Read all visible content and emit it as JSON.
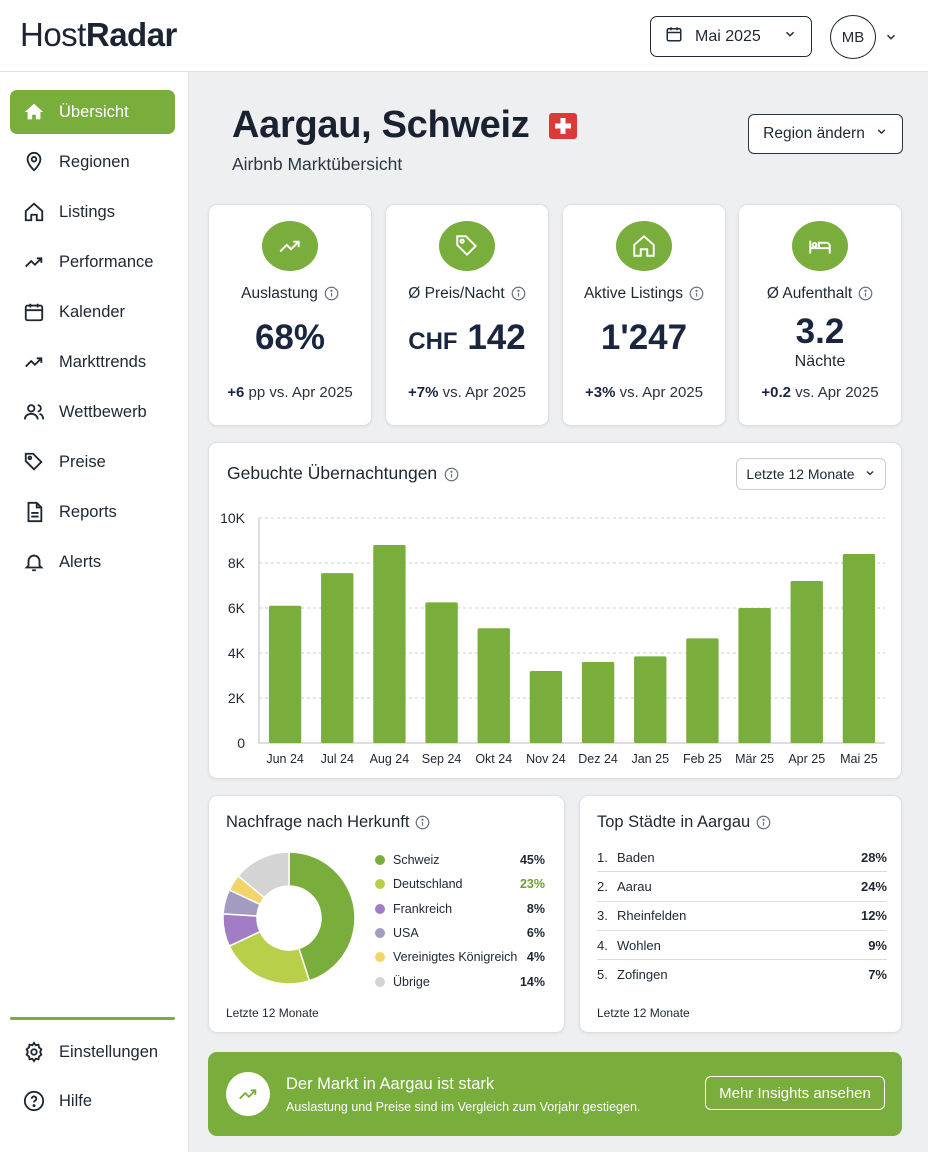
{
  "app": {
    "logo_light": "Host",
    "logo_bold": "Radar"
  },
  "header": {
    "date_label": "Mai 2025",
    "avatar_initials": "MB"
  },
  "sidebar": {
    "items": [
      {
        "label": "Übersicht",
        "icon": "home-icon",
        "active": true
      },
      {
        "label": "Regionen",
        "icon": "map-pin-icon"
      },
      {
        "label": "Listings",
        "icon": "house-icon"
      },
      {
        "label": "Performance",
        "icon": "trend-up-icon"
      },
      {
        "label": "Kalender",
        "icon": "calendar-icon"
      },
      {
        "label": "Markttrends",
        "icon": "trend-up-icon"
      },
      {
        "label": "Wettbewerb",
        "icon": "users-icon"
      },
      {
        "label": "Preise",
        "icon": "tag-icon"
      },
      {
        "label": "Reports",
        "icon": "document-icon"
      },
      {
        "label": "Alerts",
        "icon": "bell-icon"
      }
    ],
    "bottom_items": [
      {
        "label": "Einstellungen",
        "icon": "gear-icon"
      },
      {
        "label": "Hilfe",
        "icon": "help-icon"
      }
    ]
  },
  "page": {
    "title": "Aargau, Schweiz",
    "subtitle": "Airbnb Marktübersicht",
    "region_button": "Region ändern"
  },
  "kpis": [
    {
      "label": "Auslastung",
      "value": "68%",
      "delta_bold": "+6",
      "delta_rest": " pp vs. Apr 2025",
      "icon": "trend-up-icon"
    },
    {
      "label": "Ø Preis/Nacht",
      "currency": "CHF",
      "value": "142",
      "delta_bold": "+7%",
      "delta_rest": " vs. Apr 2025",
      "icon": "tag-icon"
    },
    {
      "label": "Aktive Listings",
      "value": "1'247",
      "delta_bold": "+3%",
      "delta_rest": " vs. Apr 2025",
      "icon": "house-icon"
    },
    {
      "label": "Ø Aufenthalt",
      "value": "3.2",
      "unit": "Nächte",
      "delta_bold": "+0.2",
      "delta_rest": " vs. Apr 2025",
      "icon": "bed-icon"
    }
  ],
  "booking_chart": {
    "title": "Gebuchte Übernachtungen",
    "range_label": "Letzte 12 Monate"
  },
  "chart_data": {
    "type": "bar",
    "title": "Gebuchte Übernachtungen",
    "categories": [
      "Jun 24",
      "Jul 24",
      "Aug 24",
      "Sep 24",
      "Okt 24",
      "Nov 24",
      "Dez 24",
      "Jan 25",
      "Feb 25",
      "Mär 25",
      "Apr 25",
      "Mai 25"
    ],
    "values": [
      6100,
      7550,
      8800,
      6250,
      5100,
      3200,
      3600,
      3850,
      4650,
      6000,
      7200,
      8400
    ],
    "ylim": [
      0,
      10000
    ],
    "yticks": [
      0,
      2000,
      4000,
      6000,
      8000,
      10000
    ],
    "ytick_labels": [
      "0",
      "2K",
      "4K",
      "6K",
      "8K",
      "10K"
    ],
    "grid": true,
    "color": "#79ad3c"
  },
  "demand": {
    "title": "Nachfrage nach Herkunft",
    "footnote": "Letzte 12 Monate",
    "segments": [
      {
        "name": "Schweiz",
        "pct": "45%",
        "value": 45,
        "color": "#79ad3c"
      },
      {
        "name": "Deutschland",
        "pct": "23%",
        "value": 23,
        "color": "#b8cf4a",
        "pct_color": "#6aa02f"
      },
      {
        "name": "Frankreich",
        "pct": "8%",
        "value": 8,
        "color": "#a27cc4"
      },
      {
        "name": "USA",
        "pct": "6%",
        "value": 6,
        "color": "#a39bc2"
      },
      {
        "name": "Vereinigtes Königreich",
        "pct": "4%",
        "value": 4,
        "color": "#f2d56a"
      },
      {
        "name": "Übrige",
        "pct": "14%",
        "value": 14,
        "color": "#d4d4d4"
      }
    ]
  },
  "cities": {
    "title": "Top Städte in Aargau",
    "footnote": "Letzte 12 Monate",
    "items": [
      {
        "rank": "1.",
        "name": "Baden",
        "pct": "28%"
      },
      {
        "rank": "2.",
        "name": "Aarau",
        "pct": "24%"
      },
      {
        "rank": "3.",
        "name": "Rheinfelden",
        "pct": "12%"
      },
      {
        "rank": "4.",
        "name": "Wohlen",
        "pct": "9%"
      },
      {
        "rank": "5.",
        "name": "Zofingen",
        "pct": "7%"
      }
    ]
  },
  "banner": {
    "title": "Der Markt in Aargau ist stark",
    "subtitle": "Auslastung und Preise sind im Vergleich zum Vorjahr gestiegen.",
    "button": "Mehr Insights ansehen"
  }
}
